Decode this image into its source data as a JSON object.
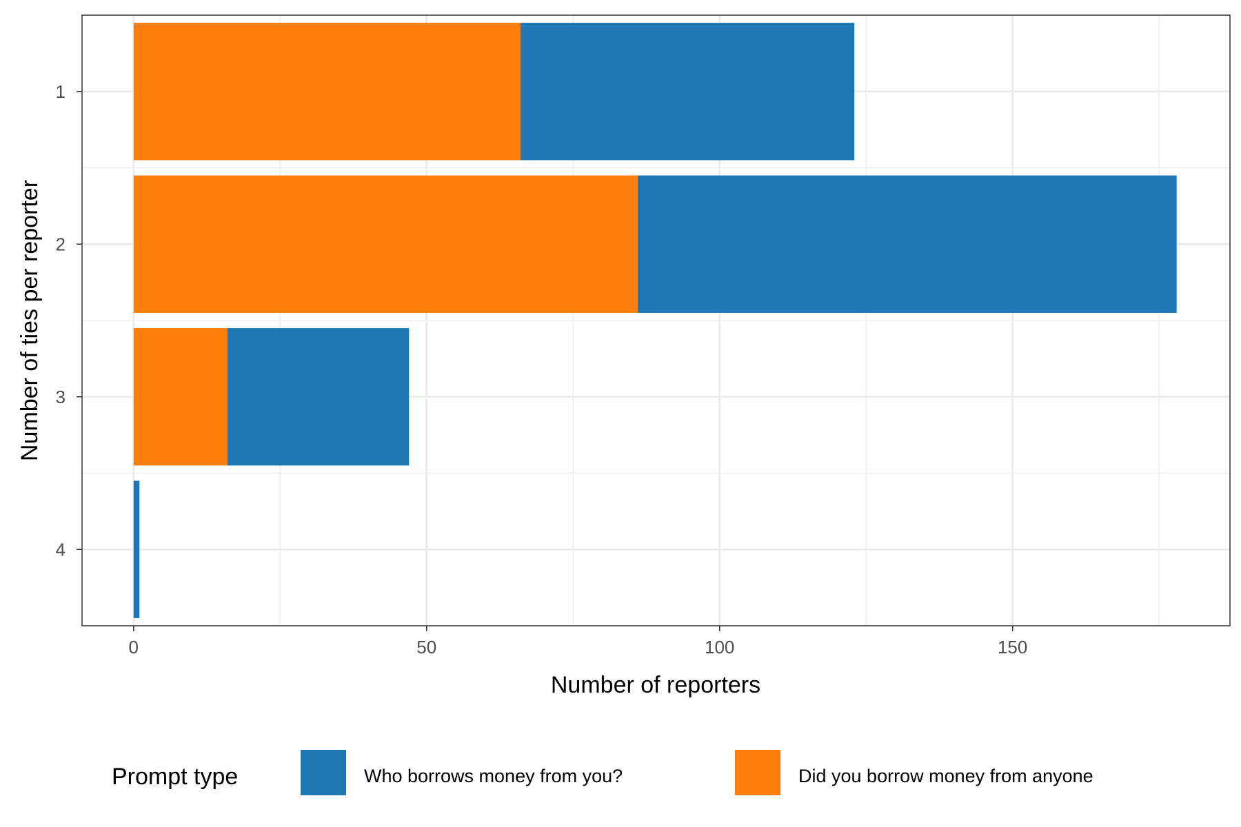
{
  "chart_data": {
    "type": "bar",
    "orientation": "horizontal",
    "stacked": true,
    "categories": [
      "1",
      "2",
      "3",
      "4"
    ],
    "series": [
      {
        "name": "Who borrows money from you?",
        "color": "#1f77b4",
        "values": [
          57,
          92,
          31,
          1
        ]
      },
      {
        "name": "Did you borrow money from anyone",
        "color": "#ff7f0e",
        "values": [
          66,
          86,
          16,
          0
        ]
      }
    ],
    "stack_order": [
      "Did you borrow money from anyone",
      "Who borrows money from you?"
    ],
    "xlabel": "Number of reporters",
    "ylabel": "Number of ties per reporter",
    "xlim": [
      -8.8,
      187.1
    ],
    "x_ticks": [
      0,
      50,
      100,
      150
    ],
    "x_tick_labels": [
      "0",
      "50",
      "100",
      "150"
    ],
    "grid": true,
    "legend": {
      "title": "Prompt type",
      "position": "bottom",
      "entries": [
        "Who borrows money from you?",
        "Did you borrow money from anyone"
      ]
    }
  }
}
